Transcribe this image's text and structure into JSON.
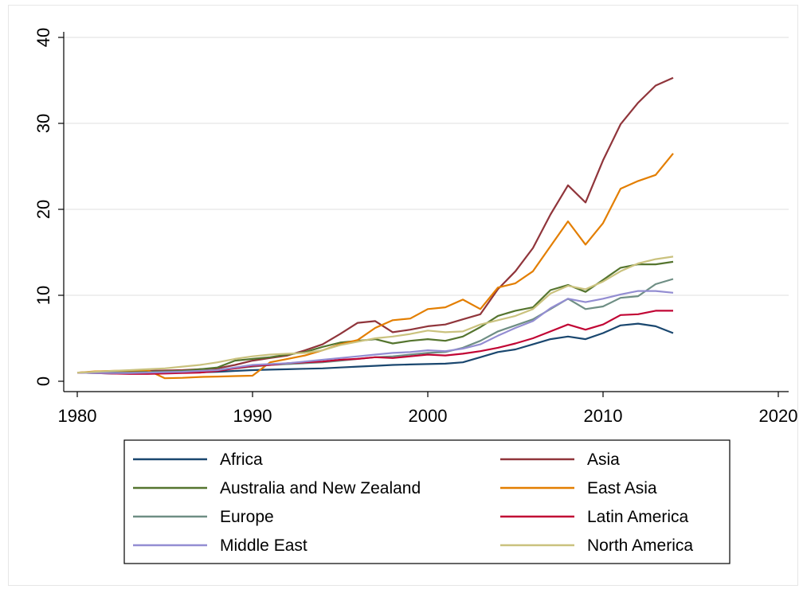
{
  "chart_data": {
    "type": "line",
    "title": "",
    "xlabel": "",
    "ylabel": "",
    "xlim": [
      1980,
      2020
    ],
    "ylim": [
      0,
      40
    ],
    "x_ticks": [
      1980,
      1990,
      2000,
      2010,
      2020
    ],
    "y_ticks": [
      0,
      10,
      20,
      30,
      40
    ],
    "grid": "horizontal",
    "legend_position": "bottom",
    "x": [
      1980,
      1981,
      1982,
      1983,
      1984,
      1985,
      1986,
      1987,
      1988,
      1989,
      1990,
      1991,
      1992,
      1993,
      1994,
      1995,
      1996,
      1997,
      1998,
      1999,
      2000,
      2001,
      2002,
      2003,
      2004,
      2005,
      2006,
      2007,
      2008,
      2009,
      2010,
      2011,
      2012,
      2013,
      2014
    ],
    "series": [
      {
        "name": "Africa",
        "color": "#1a476f",
        "values": [
          1.0,
          0.95,
          0.9,
          0.9,
          0.9,
          0.95,
          1.0,
          1.05,
          1.1,
          1.2,
          1.3,
          1.35,
          1.4,
          1.45,
          1.5,
          1.6,
          1.7,
          1.8,
          1.9,
          1.95,
          2.0,
          2.05,
          2.2,
          2.8,
          3.4,
          3.7,
          4.3,
          4.9,
          5.2,
          4.9,
          5.6,
          6.5,
          6.7,
          6.4,
          5.6
        ]
      },
      {
        "name": "Asia",
        "color": "#90353b",
        "values": [
          1.0,
          1.1,
          1.15,
          1.2,
          1.2,
          1.25,
          1.3,
          1.4,
          1.5,
          1.9,
          2.4,
          2.7,
          3.0,
          3.6,
          4.3,
          5.5,
          6.8,
          7.0,
          5.7,
          6.0,
          6.4,
          6.6,
          7.2,
          7.8,
          10.7,
          12.8,
          15.5,
          19.4,
          22.8,
          20.8,
          25.7,
          29.9,
          32.4,
          34.4,
          35.3
        ]
      },
      {
        "name": "Australia and New Zealand",
        "color": "#55752f",
        "values": [
          1.0,
          1.05,
          1.05,
          1.1,
          1.1,
          1.15,
          1.2,
          1.4,
          1.6,
          2.4,
          2.6,
          2.8,
          3.1,
          3.4,
          4.0,
          4.5,
          4.7,
          4.9,
          4.4,
          4.7,
          4.9,
          4.7,
          5.2,
          6.3,
          7.6,
          8.2,
          8.6,
          10.6,
          11.2,
          10.4,
          11.8,
          13.2,
          13.6,
          13.6,
          13.9
        ]
      },
      {
        "name": "East Asia",
        "color": "#e37e00",
        "values": [
          1.0,
          1.15,
          1.2,
          1.25,
          1.3,
          0.35,
          0.4,
          0.5,
          0.55,
          0.6,
          0.65,
          2.2,
          2.6,
          3.0,
          3.6,
          4.3,
          4.8,
          6.2,
          7.1,
          7.3,
          8.4,
          8.6,
          9.5,
          8.4,
          10.9,
          11.4,
          12.8,
          15.7,
          18.6,
          15.9,
          18.4,
          22.4,
          23.3,
          24.0,
          26.5
        ]
      },
      {
        "name": "Europe",
        "color": "#6e8e84",
        "values": [
          1.0,
          1.0,
          1.0,
          1.0,
          1.05,
          1.1,
          1.15,
          1.2,
          1.3,
          1.5,
          1.7,
          1.9,
          2.0,
          2.1,
          2.2,
          2.4,
          2.6,
          2.8,
          2.9,
          3.1,
          3.3,
          3.4,
          3.9,
          4.7,
          5.8,
          6.5,
          7.2,
          8.4,
          9.6,
          8.4,
          8.7,
          9.7,
          9.9,
          11.3,
          11.9
        ]
      },
      {
        "name": "Latin America",
        "color": "#c10534",
        "values": [
          1.0,
          0.95,
          0.9,
          0.85,
          0.85,
          0.9,
          0.95,
          1.0,
          1.2,
          1.5,
          1.8,
          1.9,
          2.1,
          2.2,
          2.3,
          2.5,
          2.6,
          2.8,
          2.7,
          2.9,
          3.1,
          3.0,
          3.2,
          3.5,
          3.9,
          4.4,
          5.0,
          5.8,
          6.6,
          6.0,
          6.6,
          7.7,
          7.8,
          8.2,
          8.2
        ]
      },
      {
        "name": "Middle East",
        "color": "#938dd2",
        "values": [
          1.0,
          0.95,
          0.95,
          0.95,
          1.0,
          1.05,
          1.1,
          1.2,
          1.3,
          1.6,
          1.9,
          2.0,
          2.1,
          2.3,
          2.5,
          2.7,
          2.9,
          3.1,
          3.3,
          3.4,
          3.6,
          3.5,
          3.8,
          4.3,
          5.3,
          6.2,
          7.0,
          8.5,
          9.6,
          9.2,
          9.6,
          10.1,
          10.5,
          10.5,
          10.3
        ]
      },
      {
        "name": "North America",
        "color": "#cac27e",
        "values": [
          1.0,
          1.1,
          1.2,
          1.3,
          1.4,
          1.5,
          1.7,
          1.9,
          2.2,
          2.6,
          2.9,
          3.1,
          3.2,
          3.3,
          3.6,
          4.2,
          4.6,
          5.0,
          5.2,
          5.5,
          5.9,
          5.7,
          5.8,
          6.6,
          7.1,
          7.6,
          8.4,
          10.2,
          11.1,
          10.7,
          11.6,
          12.8,
          13.7,
          14.2,
          14.5
        ]
      }
    ]
  }
}
